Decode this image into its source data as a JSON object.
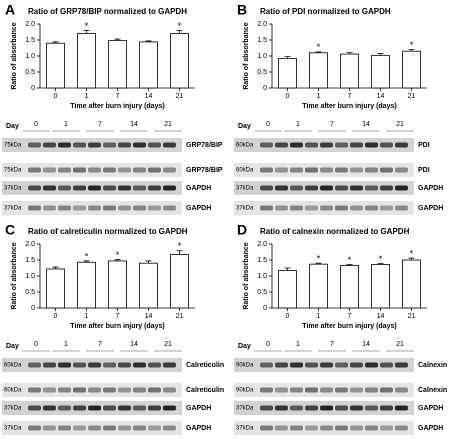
{
  "chart_data": [
    {
      "type": "bar",
      "panel": "A",
      "title": "Ratio of GRP78/BIP normalized to GAPDH",
      "ylabel": "Ratio of absorbance",
      "xlabel": "Time after burn injury (days)",
      "categories": [
        "0",
        "1",
        "7",
        "14",
        "21"
      ],
      "values": [
        1.4,
        1.7,
        1.48,
        1.44,
        1.7
      ],
      "errors": [
        0.04,
        0.1,
        0.05,
        0.03,
        0.1
      ],
      "markers": [
        null,
        "*",
        null,
        null,
        "*"
      ],
      "color": "#ffffff",
      "ylim": [
        0,
        2
      ],
      "yticks": [
        0,
        0.5,
        {
          "value": 1,
          "label": "1.0"
        },
        1.5,
        {
          "value": 2,
          "label": "2.0"
        }
      ],
      "blot": {
        "day_label": "Day",
        "days": [
          "0",
          "1",
          "7",
          "14",
          "21"
        ],
        "rows": [
          {
            "size": "75kDa",
            "name": "GRP78/BIP"
          },
          {
            "size": "75kDa",
            "name": "GRP78/BIP"
          },
          {
            "size": "37kDa",
            "name": "GAPDH"
          },
          {
            "size": "37kDa",
            "name": "GAPDH"
          }
        ]
      }
    },
    {
      "type": "bar",
      "panel": "B",
      "title": "Ratio of PDI normalized to GAPDH",
      "ylabel": "Ratio of absorbance",
      "xlabel": "Time after burn injury (days)",
      "categories": [
        "0",
        "1",
        "7",
        "14",
        "21"
      ],
      "values": [
        0.92,
        1.1,
        1.06,
        1.02,
        1.15
      ],
      "errors": [
        0.06,
        0.03,
        0.05,
        0.06,
        0.05
      ],
      "markers": [
        null,
        "*",
        null,
        null,
        "*"
      ],
      "color": "#ffffff",
      "ylim": [
        0,
        2
      ],
      "yticks": [
        0,
        0.5,
        {
          "value": 1,
          "label": "1.0"
        },
        1.5,
        {
          "value": 2,
          "label": "2.0"
        }
      ],
      "blot": {
        "day_label": "Day",
        "days": [
          "0",
          "1",
          "7",
          "14",
          "21"
        ],
        "rows": [
          {
            "size": "60kDa",
            "name": "PDI"
          },
          {
            "size": "60kDa",
            "name": "PDI"
          },
          {
            "size": "37kDa",
            "name": "GAPDH"
          },
          {
            "size": "37kDa",
            "name": "GAPDH"
          }
        ]
      }
    },
    {
      "type": "bar",
      "panel": "C",
      "title": "Ratio of calreticulin normalized to GAPDH",
      "ylabel": "Ratio of absorbance",
      "xlabel": "Time after burn injury (days)",
      "categories": [
        "0",
        "1",
        "7",
        "14",
        "21"
      ],
      "values": [
        1.22,
        1.43,
        1.47,
        1.4,
        1.67
      ],
      "errors": [
        0.06,
        0.04,
        0.04,
        0.07,
        0.12
      ],
      "markers": [
        null,
        "*",
        "*",
        null,
        "*"
      ],
      "color": "#ffffff",
      "ylim": [
        0,
        2
      ],
      "yticks": [
        0,
        0.5,
        {
          "value": 1,
          "label": "1.0"
        },
        1.5,
        {
          "value": 2,
          "label": "2.0"
        }
      ],
      "blot": {
        "day_label": "Day",
        "days": [
          "0",
          "1",
          "7",
          "14",
          "21"
        ],
        "rows": [
          {
            "size": "60kDa",
            "name": "Calreticulin"
          },
          {
            "size": "60kDa",
            "name": "Calreticulin"
          },
          {
            "size": "37kDa",
            "name": "GAPDH"
          },
          {
            "size": "37kDa",
            "name": "GAPDH"
          }
        ]
      }
    },
    {
      "type": "bar",
      "panel": "D",
      "title": "Ratio of calnexin normalized to GAPDH",
      "ylabel": "Ratio of absorbance",
      "xlabel": "Time after burn injury (days)",
      "categories": [
        "0",
        "1",
        "7",
        "14",
        "21"
      ],
      "values": [
        1.17,
        1.37,
        1.33,
        1.36,
        1.5
      ],
      "errors": [
        0.08,
        0.03,
        0.03,
        0.03,
        0.06
      ],
      "markers": [
        null,
        "*",
        "*",
        "*",
        "*"
      ],
      "color": "#ffffff",
      "ylim": [
        0,
        2
      ],
      "yticks": [
        0,
        0.5,
        {
          "value": 1,
          "label": "1.0"
        },
        1.5,
        {
          "value": 2,
          "label": "2.0"
        }
      ],
      "blot": {
        "day_label": "Day",
        "days": [
          "0",
          "1",
          "7",
          "14",
          "21"
        ],
        "rows": [
          {
            "size": "90kDa",
            "name": "Calnexin"
          },
          {
            "size": "90kDa",
            "name": "Calnexin"
          },
          {
            "size": "37kDa",
            "name": "GAPDH"
          },
          {
            "size": "37kDa",
            "name": "GAPDH"
          }
        ]
      }
    }
  ]
}
